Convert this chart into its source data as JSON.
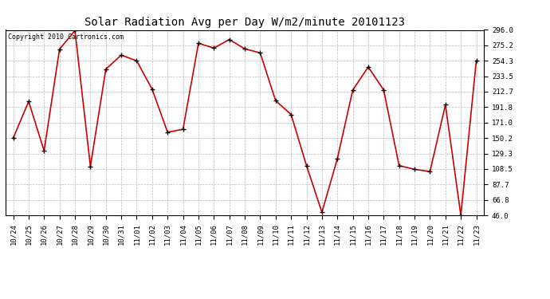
{
  "title": "Solar Radiation Avg per Day W/m2/minute 20101123",
  "copyright": "Copyright 2010 Cartronics.com",
  "labels": [
    "10/24",
    "10/25",
    "10/26",
    "10/27",
    "10/28",
    "10/29",
    "10/30",
    "10/31",
    "11/01",
    "11/02",
    "11/03",
    "11/04",
    "11/05",
    "11/06",
    "11/07",
    "11/08",
    "11/09",
    "11/10",
    "11/11",
    "11/12",
    "11/13",
    "11/14",
    "11/15",
    "11/16",
    "11/17",
    "11/18",
    "11/19",
    "11/20",
    "11/21",
    "11/22",
    "11/23"
  ],
  "values": [
    150.2,
    199.5,
    133.0,
    270.0,
    295.0,
    112.0,
    243.0,
    262.0,
    254.3,
    216.0,
    158.0,
    162.0,
    278.0,
    271.5,
    283.0,
    270.5,
    265.0,
    200.5,
    182.0,
    113.0,
    50.0,
    122.5,
    215.0,
    246.0,
    215.0,
    113.0,
    108.0,
    105.0,
    195.0,
    46.0,
    254.3
  ],
  "y_ticks": [
    46.0,
    66.8,
    87.7,
    108.5,
    129.3,
    150.2,
    171.0,
    191.8,
    212.7,
    233.5,
    254.3,
    275.2,
    296.0
  ],
  "y_min": 46.0,
  "y_max": 296.0,
  "line_color": "#cc0000",
  "bg_color": "#ffffff",
  "grid_color": "#aaaaaa",
  "title_fontsize": 10,
  "copyright_fontsize": 6,
  "tick_fontsize": 6.5
}
